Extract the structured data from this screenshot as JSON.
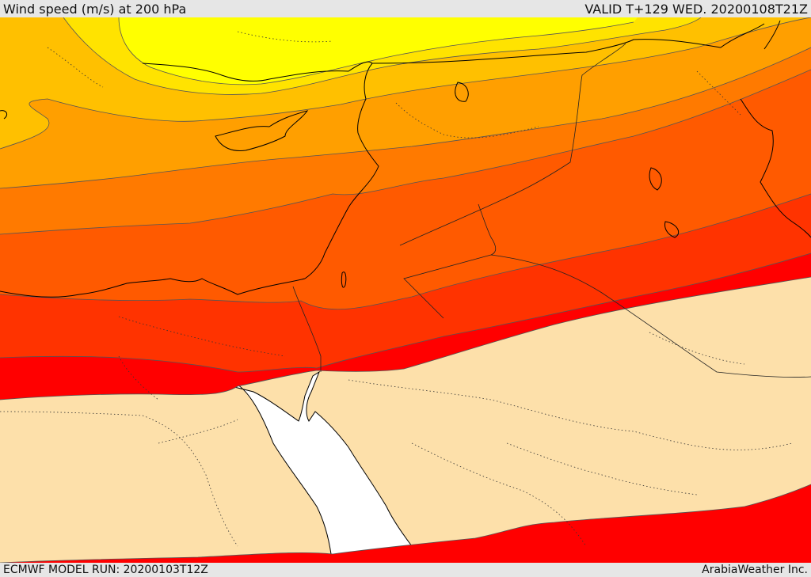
{
  "header": {
    "title": "Wind speed (m/s) at 200 hPa",
    "valid": "VALID T+129 WED. 20200108T21Z"
  },
  "footer": {
    "model_run": "ECMWF MODEL RUN: 20200103T12Z",
    "credit": "ArabiaWeather Inc."
  },
  "colors": {
    "band_1": "#ffff00",
    "band_2": "#ffe300",
    "band_3": "#ffc000",
    "band_4": "#ff9f00",
    "band_5": "#ff7a00",
    "band_6": "#ff5a00",
    "band_7": "#ff3300",
    "band_8": "#ff0000",
    "calm_land": "#fde0aa",
    "sea": "#ffffff"
  }
}
